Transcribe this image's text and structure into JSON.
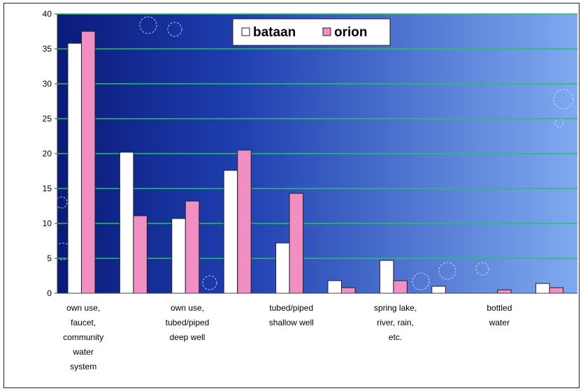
{
  "chart_data": {
    "type": "bar",
    "categories": [
      [
        "own use,",
        "faucet,",
        "community",
        "water",
        "system"
      ],
      [],
      [
        "own use,",
        "tubed/piped",
        "deep well"
      ],
      [],
      [
        "tubed/piped",
        "shallow well"
      ],
      [],
      [
        "spring lake,",
        "river, rain,",
        "etc."
      ],
      [],
      [
        "bottled",
        "water"
      ],
      []
    ],
    "series": [
      {
        "name": "bataan",
        "values": [
          35.8,
          20.2,
          10.7,
          17.6,
          7.2,
          1.8,
          4.7,
          1.0,
          0,
          1.4
        ],
        "color": "#ffffff"
      },
      {
        "name": "orion",
        "values": [
          37.5,
          11.1,
          13.2,
          20.5,
          14.3,
          0.8,
          1.8,
          0,
          0.5,
          0.8
        ],
        "color": "#f28fc2"
      }
    ],
    "ylim": [
      0,
      40
    ],
    "yticks": [
      "0",
      "5",
      "10",
      "15",
      "20",
      "25",
      "30",
      "35",
      "40"
    ],
    "grid": true,
    "grid_color": "#22c55e",
    "legend_position": "top-center",
    "plot_gradient": [
      "#0a1a7a",
      "#7faaf0"
    ]
  }
}
